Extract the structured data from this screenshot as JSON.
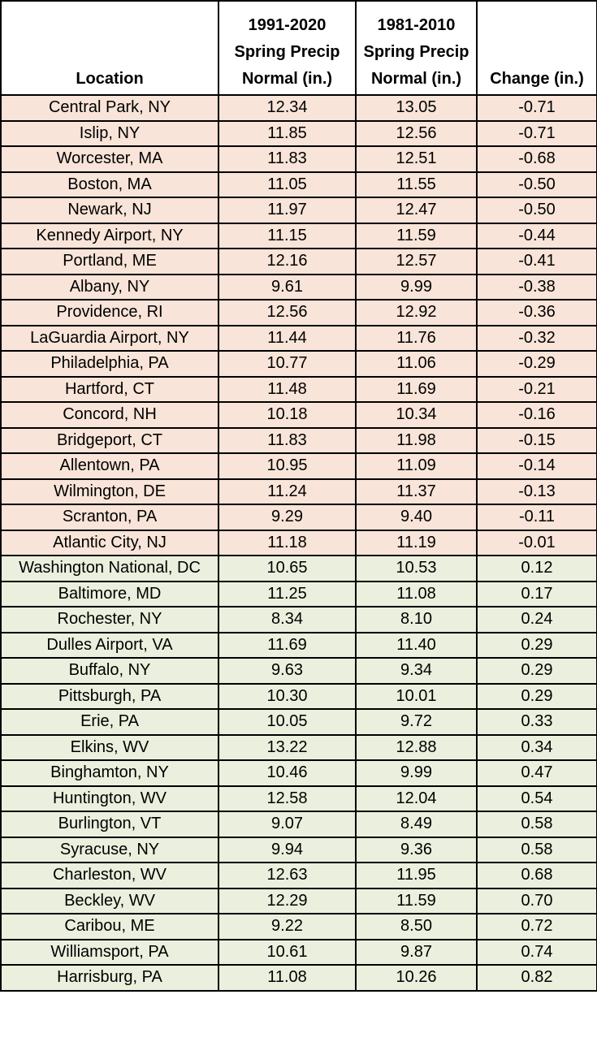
{
  "colors": {
    "negative_row": "#f8e4d8",
    "positive_row": "#eaf0dd",
    "border": "#000000"
  },
  "headers": {
    "location": "Location",
    "normal_new_line1": "1991-2020",
    "normal_new_line2": "Spring Precip",
    "normal_new_line3": "Normal (in.)",
    "normal_old_line1": "1981-2010",
    "normal_old_line2": "Spring Precip",
    "normal_old_line3": "Normal (in.)",
    "change": "Change (in.)"
  },
  "rows": [
    {
      "location": "Central Park, NY",
      "n1991": "12.34",
      "n1981": "13.05",
      "change": "-0.71"
    },
    {
      "location": "Islip, NY",
      "n1991": "11.85",
      "n1981": "12.56",
      "change": "-0.71"
    },
    {
      "location": "Worcester, MA",
      "n1991": "11.83",
      "n1981": "12.51",
      "change": "-0.68"
    },
    {
      "location": "Boston, MA",
      "n1991": "11.05",
      "n1981": "11.55",
      "change": "-0.50"
    },
    {
      "location": "Newark, NJ",
      "n1991": "11.97",
      "n1981": "12.47",
      "change": "-0.50"
    },
    {
      "location": "Kennedy Airport, NY",
      "n1991": "11.15",
      "n1981": "11.59",
      "change": "-0.44"
    },
    {
      "location": "Portland, ME",
      "n1991": "12.16",
      "n1981": "12.57",
      "change": "-0.41"
    },
    {
      "location": "Albany, NY",
      "n1991": "9.61",
      "n1981": "9.99",
      "change": "-0.38"
    },
    {
      "location": "Providence, RI",
      "n1991": "12.56",
      "n1981": "12.92",
      "change": "-0.36"
    },
    {
      "location": "LaGuardia Airport, NY",
      "n1991": "11.44",
      "n1981": "11.76",
      "change": "-0.32"
    },
    {
      "location": "Philadelphia, PA",
      "n1991": "10.77",
      "n1981": "11.06",
      "change": "-0.29"
    },
    {
      "location": "Hartford, CT",
      "n1991": "11.48",
      "n1981": "11.69",
      "change": "-0.21"
    },
    {
      "location": "Concord, NH",
      "n1991": "10.18",
      "n1981": "10.34",
      "change": "-0.16"
    },
    {
      "location": "Bridgeport, CT",
      "n1991": "11.83",
      "n1981": "11.98",
      "change": "-0.15"
    },
    {
      "location": "Allentown, PA",
      "n1991": "10.95",
      "n1981": "11.09",
      "change": "-0.14"
    },
    {
      "location": "Wilmington, DE",
      "n1991": "11.24",
      "n1981": "11.37",
      "change": "-0.13"
    },
    {
      "location": "Scranton, PA",
      "n1991": "9.29",
      "n1981": "9.40",
      "change": "-0.11"
    },
    {
      "location": "Atlantic City, NJ",
      "n1991": "11.18",
      "n1981": "11.19",
      "change": "-0.01"
    },
    {
      "location": "Washington National, DC",
      "n1991": "10.65",
      "n1981": "10.53",
      "change": "0.12"
    },
    {
      "location": "Baltimore, MD",
      "n1991": "11.25",
      "n1981": "11.08",
      "change": "0.17"
    },
    {
      "location": "Rochester, NY",
      "n1991": "8.34",
      "n1981": "8.10",
      "change": "0.24"
    },
    {
      "location": "Dulles Airport, VA",
      "n1991": "11.69",
      "n1981": "11.40",
      "change": "0.29"
    },
    {
      "location": "Buffalo, NY",
      "n1991": "9.63",
      "n1981": "9.34",
      "change": "0.29"
    },
    {
      "location": "Pittsburgh, PA",
      "n1991": "10.30",
      "n1981": "10.01",
      "change": "0.29"
    },
    {
      "location": "Erie, PA",
      "n1991": "10.05",
      "n1981": "9.72",
      "change": "0.33"
    },
    {
      "location": "Elkins, WV",
      "n1991": "13.22",
      "n1981": "12.88",
      "change": "0.34"
    },
    {
      "location": "Binghamton, NY",
      "n1991": "10.46",
      "n1981": "9.99",
      "change": "0.47"
    },
    {
      "location": "Huntington, WV",
      "n1991": "12.58",
      "n1981": "12.04",
      "change": "0.54"
    },
    {
      "location": "Burlington, VT",
      "n1991": "9.07",
      "n1981": "8.49",
      "change": "0.58"
    },
    {
      "location": "Syracuse, NY",
      "n1991": "9.94",
      "n1981": "9.36",
      "change": "0.58"
    },
    {
      "location": "Charleston, WV",
      "n1991": "12.63",
      "n1981": "11.95",
      "change": "0.68"
    },
    {
      "location": "Beckley, WV",
      "n1991": "12.29",
      "n1981": "11.59",
      "change": "0.70"
    },
    {
      "location": "Caribou, ME",
      "n1991": "9.22",
      "n1981": "8.50",
      "change": "0.72"
    },
    {
      "location": "Williamsport, PA",
      "n1991": "10.61",
      "n1981": "9.87",
      "change": "0.74"
    },
    {
      "location": "Harrisburg, PA",
      "n1991": "11.08",
      "n1981": "10.26",
      "change": "0.82"
    }
  ]
}
